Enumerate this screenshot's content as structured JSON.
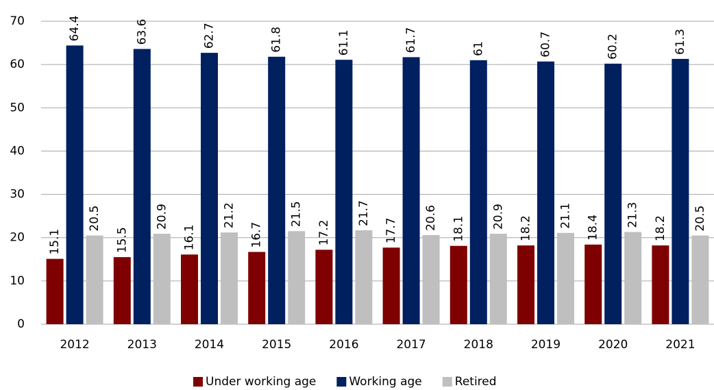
{
  "chart_data": {
    "type": "bar",
    "categories": [
      "2012",
      "2013",
      "2014",
      "2015",
      "2016",
      "2017",
      "2018",
      "2019",
      "2020",
      "2021"
    ],
    "series": [
      {
        "name": "Under working age",
        "color": "#7f0000",
        "values": [
          15.1,
          15.5,
          16.1,
          16.7,
          17.2,
          17.7,
          18.1,
          18.2,
          18.4,
          18.2
        ]
      },
      {
        "name": "Working age",
        "color": "#002060",
        "values": [
          64.4,
          63.6,
          62.7,
          61.8,
          61.1,
          61.7,
          61,
          60.7,
          60.2,
          61.3
        ]
      },
      {
        "name": "Retired",
        "color": "#bfbfbf",
        "values": [
          20.5,
          20.9,
          21.2,
          21.5,
          21.7,
          20.6,
          20.9,
          21.1,
          21.3,
          20.5
        ]
      }
    ],
    "ylim": [
      0,
      70
    ],
    "yticks": [
      0,
      10,
      20,
      30,
      40,
      50,
      60,
      70
    ],
    "grid": true,
    "legend": "bottom"
  }
}
